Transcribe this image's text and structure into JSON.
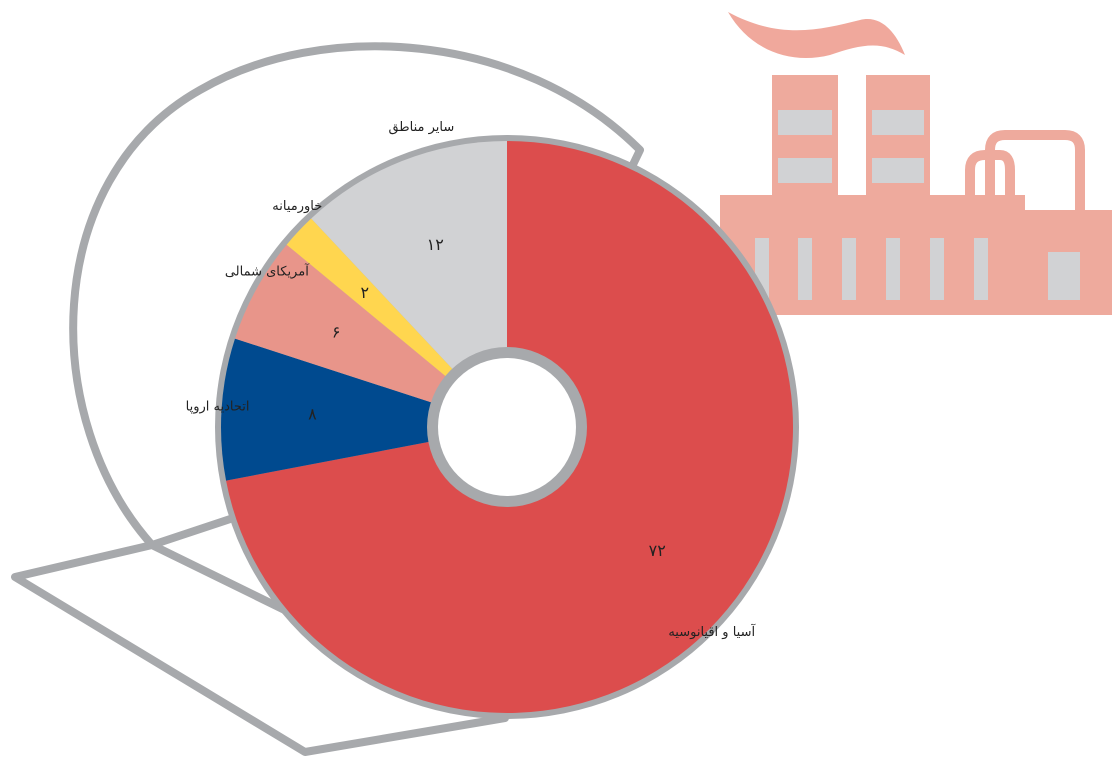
{
  "chart_data": {
    "type": "donut",
    "categories": [
      "آسیا و اقیانوسیه",
      "اتحادیه اروپا",
      "آمریکای شمالی",
      "خاورمیانه",
      "سایر مناطق"
    ],
    "values": [
      72,
      8,
      6,
      2,
      12
    ],
    "value_labels": [
      "۷۲",
      "۸",
      "۶",
      "۲",
      "۱۲"
    ],
    "colors": [
      "#dc4d4d",
      "#004a8f",
      "#e8958a",
      "#ffd64f",
      "#d1d2d4"
    ]
  }
}
